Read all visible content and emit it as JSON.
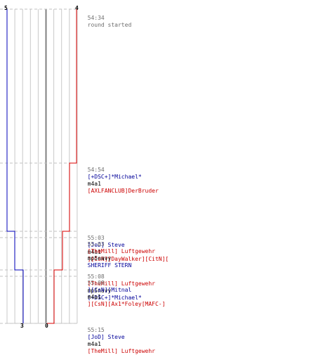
{
  "timeline": {
    "grid_lines": 10,
    "teams": {
      "blue": {
        "color": "#0000bb",
        "start_score": "5",
        "end_score": "3"
      },
      "red": {
        "color": "#dd0000",
        "start_score": "4",
        "end_score": "0"
      }
    },
    "colors": {
      "grid": "#c8c8c8",
      "center_line": "#808080",
      "dash": "#c0c0c0"
    }
  },
  "log": [
    {
      "time": "54:34",
      "message": "round started"
    },
    {
      "time": "54:54",
      "killer": "[+DSC+]*Michael*",
      "killer_team": "blue",
      "weapon": "m4a1",
      "victim": "[AXLFANCLUB]DerBruder",
      "victim_team": "red"
    },
    {
      "time": "55:03",
      "killer": "[JoD] Steve",
      "killer_team": "blue",
      "weapon": "m4a1",
      "victim": "][CsN][DayWalker][CitN][",
      "victim_team": "red"
    },
    {
      "time": "55:03",
      "killer": "[TheMill] Luftgewehr",
      "killer_team": "red",
      "weapon": "mp5navy",
      "victim": "SHERIFF STERN",
      "victim_team": "blue"
    },
    {
      "time": "55:08",
      "killer": "[TheMill] Luftgewehr",
      "killer_team": "red",
      "weapon": "mp5navy",
      "victim": "[+DSC+]*Michael*",
      "victim_team": "blue"
    },
    {
      "time": "55:08",
      "killer": "][CsN][Mitnal",
      "killer_team": "blue",
      "weapon": "m4a1",
      "victim": "][CsN][Ax1*Foley[MAFC-]",
      "victim_team": "red"
    },
    {
      "time": "55:15",
      "killer": "[JoD] Steve",
      "killer_team": "blue",
      "weapon": "m4a1",
      "victim": "[TheMill] Luftgewehr",
      "victim_team": "red"
    }
  ]
}
